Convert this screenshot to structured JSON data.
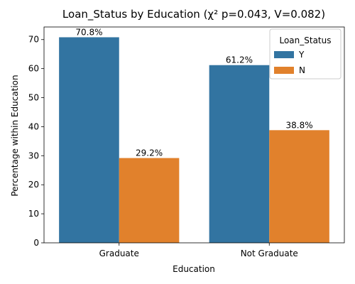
{
  "chart_data": {
    "type": "bar",
    "title": "Loan_Status by Education (χ² p=0.043, V=0.082)",
    "xlabel": "Education",
    "ylabel": "Percentage within Education",
    "categories": [
      "Graduate",
      "Not Graduate"
    ],
    "series": [
      {
        "name": "Y",
        "values": [
          70.8,
          61.2
        ],
        "labels": [
          "70.8%",
          "61.2%"
        ],
        "color": "#3274a1"
      },
      {
        "name": "N",
        "values": [
          29.2,
          38.8
        ],
        "labels": [
          "29.2%",
          "38.8%"
        ],
        "color": "#e1812c"
      }
    ],
    "ylim": [
      0,
      74.34
    ],
    "yticks": [
      0,
      10,
      20,
      30,
      40,
      50,
      60,
      70
    ],
    "legend": {
      "title": "Loan_Status",
      "placement": "top-right"
    },
    "grid": false
  }
}
